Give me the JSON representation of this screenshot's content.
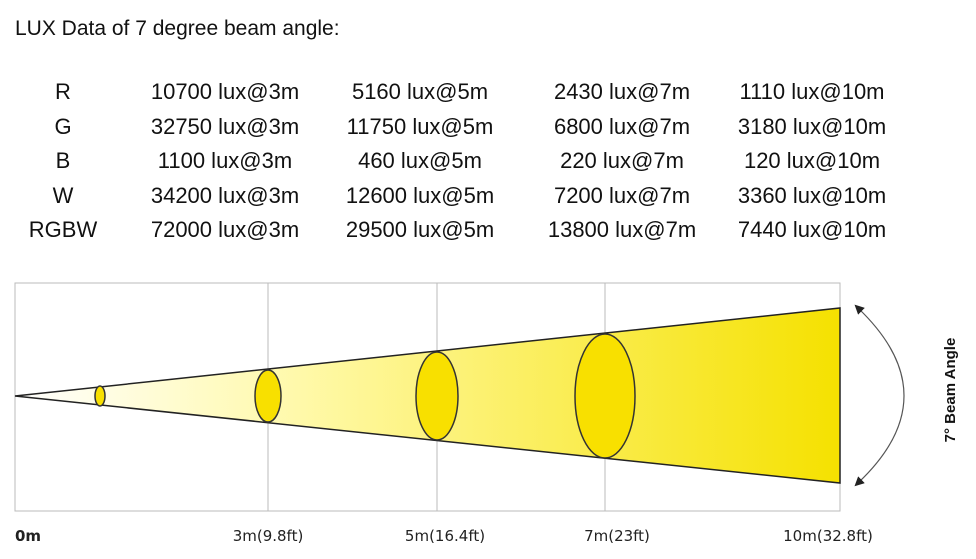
{
  "header": {
    "title": "LUX Data of 7 degree beam angle:"
  },
  "table": {
    "rows": [
      [
        "R",
        "10700 lux@3m",
        "5160 lux@5m",
        "2430 lux@7m",
        "1110 lux@10m"
      ],
      [
        "G",
        "32750 lux@3m",
        "11750 lux@5m",
        "6800 lux@7m",
        "3180 lux@10m"
      ],
      [
        "B",
        "1100 lux@3m",
        "460 lux@5m",
        "220 lux@7m",
        "120 lux@10m"
      ],
      [
        "W",
        "34200 lux@3m",
        "12600 lux@5m",
        "7200 lux@7m",
        "3360 lux@10m"
      ],
      [
        "RGBW",
        "72000 lux@3m",
        "29500 lux@5m",
        "13800 lux@7m",
        "7440 lux@10m"
      ]
    ]
  },
  "diagram": {
    "distance_labels": [
      "0m",
      "3m(9.8ft)",
      "5m(16.4ft)",
      "7m(23ft)",
      "10m(32.8ft)"
    ],
    "angle_label": "7° Beam Angle"
  }
}
